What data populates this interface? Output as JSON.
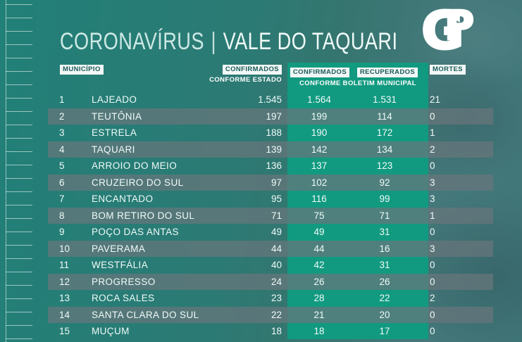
{
  "header": {
    "title_topic": "CORONAVÍRUS",
    "title_separator": "|",
    "title_region": "VALE DO TAQUARI",
    "logo_g": "G",
    "logo_p": "P"
  },
  "chart_data": {
    "type": "table",
    "title": "CORONAVÍRUS | VALE DO TAQUARI",
    "columns": {
      "municipio": "MUNICÍPIO",
      "confirmados_estado": "CONFIRMADOS",
      "confirmados_estado_sub": "CONFORME ESTADO",
      "confirmados_municipal": "CONFIRMADOS",
      "recuperados": "RECUPERADOS",
      "municipal_group_sub": "CONFORME BOLETIM MUNICIPAL",
      "mortes": "MORTES"
    },
    "rows": [
      {
        "rank": "1",
        "municipio": "LAJEADO",
        "confirmados_estado": "1.545",
        "confirmados_municipal": "1.564",
        "recuperados": "1.531",
        "mortes": "21"
      },
      {
        "rank": "2",
        "municipio": "TEUTÔNIA",
        "confirmados_estado": "197",
        "confirmados_municipal": "199",
        "recuperados": "114",
        "mortes": "0"
      },
      {
        "rank": "3",
        "municipio": "ESTRELA",
        "confirmados_estado": "188",
        "confirmados_municipal": "190",
        "recuperados": "172",
        "mortes": "1"
      },
      {
        "rank": "4",
        "municipio": "TAQUARI",
        "confirmados_estado": "139",
        "confirmados_municipal": "142",
        "recuperados": "134",
        "mortes": "2"
      },
      {
        "rank": "5",
        "municipio": "ARROIO DO MEIO",
        "confirmados_estado": "136",
        "confirmados_municipal": "137",
        "recuperados": "123",
        "mortes": "0"
      },
      {
        "rank": "6",
        "municipio": "CRUZEIRO DO SUL",
        "confirmados_estado": "97",
        "confirmados_municipal": "102",
        "recuperados": "92",
        "mortes": "3"
      },
      {
        "rank": "7",
        "municipio": "ENCANTADO",
        "confirmados_estado": "95",
        "confirmados_municipal": "116",
        "recuperados": "99",
        "mortes": "3"
      },
      {
        "rank": "8",
        "municipio": "BOM RETIRO DO SUL",
        "confirmados_estado": "71",
        "confirmados_municipal": "75",
        "recuperados": "71",
        "mortes": "1"
      },
      {
        "rank": "9",
        "municipio": "POÇO DAS ANTAS",
        "confirmados_estado": "49",
        "confirmados_municipal": "49",
        "recuperados": "31",
        "mortes": "0"
      },
      {
        "rank": "10",
        "municipio": "PAVERAMA",
        "confirmados_estado": "44",
        "confirmados_municipal": "44",
        "recuperados": "16",
        "mortes": "3"
      },
      {
        "rank": "11",
        "municipio": "WESTFÁLIA",
        "confirmados_estado": "40",
        "confirmados_municipal": "42",
        "recuperados": "31",
        "mortes": "0"
      },
      {
        "rank": "12",
        "municipio": "PROGRESSO",
        "confirmados_estado": "24",
        "confirmados_municipal": "26",
        "recuperados": "26",
        "mortes": "0"
      },
      {
        "rank": "13",
        "municipio": "ROCA SALES",
        "confirmados_estado": "23",
        "confirmados_municipal": "28",
        "recuperados": "22",
        "mortes": "2"
      },
      {
        "rank": "14",
        "municipio": "SANTA CLARA DO SUL",
        "confirmados_estado": "22",
        "confirmados_municipal": "21",
        "recuperados": "20",
        "mortes": "0"
      },
      {
        "rank": "15",
        "municipio": "MUÇUM",
        "confirmados_estado": "18",
        "confirmados_municipal": "18",
        "recuperados": "17",
        "mortes": "0"
      }
    ]
  },
  "colors": {
    "bg_left": "#218078",
    "bg_mid": "#2C7A74",
    "bg_right": "#44787A",
    "band": "#119A80",
    "stripe": "rgba(104,118,124,0.72)",
    "label_box_bg": "#F2F8F7",
    "label_box_text": "#1A5A57",
    "text": "#F0FAF8",
    "title_topic": "#CDE8E4",
    "title_region": "#EFFAF8",
    "logo": "#FFFFFF"
  }
}
